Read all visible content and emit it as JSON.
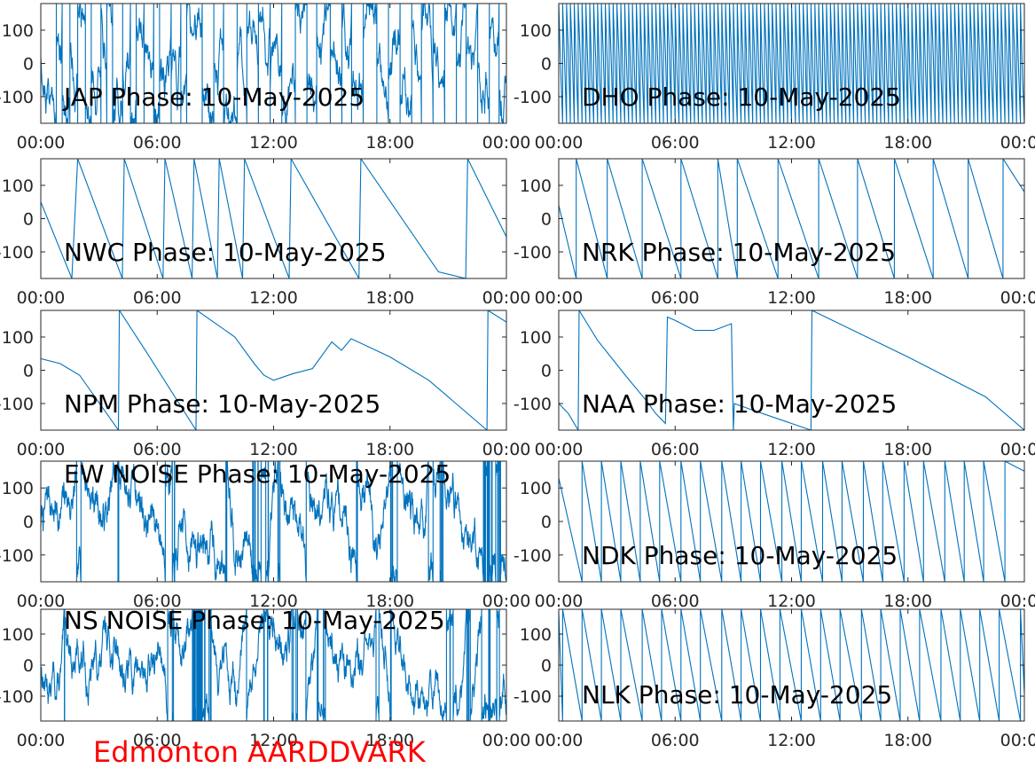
{
  "figure": {
    "footer_label": "Edmonton AARDDVARK",
    "footer_color": "#ff0000",
    "line_color": "#0072bd",
    "axis_color": "#262626"
  },
  "chart_data": [
    {
      "type": "line",
      "title": "JAP Phase: 10-May-2025",
      "x_ticks": [
        "00:00",
        "06:00",
        "12:00",
        "18:00",
        "00:00"
      ],
      "y_ticks": [
        "100",
        "0",
        "-100"
      ],
      "y_tick_values": [
        100,
        0,
        -100
      ],
      "ylim": [
        -180,
        180
      ],
      "xlim_hours": [
        0,
        24
      ],
      "grid": false,
      "series": [
        {
          "mode": "noisy",
          "wraps": [
            0.8,
            1.1,
            1.5,
            1.9,
            2.3,
            2.6,
            3.1,
            3.4,
            3.7,
            4.2,
            4.6,
            4.9,
            5.3,
            5.8,
            6.1,
            6.7,
            7.2,
            7.5,
            8.3,
            8.9,
            9.4,
            10.1,
            10.6,
            11.2,
            11.8,
            12.4,
            13.1,
            13.7,
            14.2,
            14.9,
            15.5,
            16.0,
            16.6,
            17.3,
            17.9,
            18.5,
            19.1,
            19.6,
            20.2,
            20.8,
            21.4,
            21.9,
            22.5,
            23.1,
            23.6
          ]
        }
      ]
    },
    {
      "type": "line",
      "title": "DHO Phase: 10-May-2025",
      "x_ticks": [
        "00:00",
        "06:00",
        "12:00",
        "18:00",
        "00:00"
      ],
      "y_ticks": [
        "100",
        "0",
        "-100"
      ],
      "y_tick_values": [
        100,
        0,
        -100
      ],
      "ylim": [
        -180,
        180
      ],
      "xlim_hours": [
        0,
        24
      ],
      "grid": false,
      "series": [
        {
          "mode": "dense",
          "period_hours": 0.2
        }
      ]
    },
    {
      "type": "line",
      "title": "NWC Phase: 10-May-2025",
      "x_ticks": [
        "00:00",
        "06:00",
        "12:00",
        "18:00",
        "00:00"
      ],
      "y_ticks": [
        "100",
        "0",
        "-100"
      ],
      "y_tick_values": [
        100,
        0,
        -100
      ],
      "ylim": [
        -180,
        180
      ],
      "xlim_hours": [
        0,
        24
      ],
      "grid": false,
      "series": [
        {
          "mode": "points",
          "x": [
            0,
            1.6,
            1.9,
            4.2,
            4.3,
            6.3,
            6.4,
            7.8,
            7.9,
            9.1,
            9.2,
            10.4,
            10.5,
            12.8,
            12.9,
            16.4,
            16.5,
            20.5,
            21.9,
            22.0,
            24
          ],
          "y": [
            50,
            -180,
            180,
            -180,
            180,
            -180,
            180,
            -180,
            180,
            -180,
            180,
            -180,
            180,
            -180,
            180,
            -180,
            180,
            -160,
            -180,
            180,
            -55
          ]
        }
      ]
    },
    {
      "type": "line",
      "title": "NRK Phase: 10-May-2025",
      "x_ticks": [
        "00:00",
        "06:00",
        "12:00",
        "18:00",
        "00:00"
      ],
      "y_ticks": [
        "100",
        "0",
        "-100"
      ],
      "y_tick_values": [
        100,
        0,
        -100
      ],
      "ylim": [
        -180,
        180
      ],
      "xlim_hours": [
        0,
        24
      ],
      "grid": false,
      "series": [
        {
          "mode": "sawtooth",
          "start": 40,
          "wraps": [
            0.9,
            2.5,
            4.3,
            6.3,
            8.2,
            9.2,
            11.3,
            13.4,
            15.4,
            17.3,
            19.3,
            21.1,
            22.9
          ],
          "end": 80
        }
      ]
    },
    {
      "type": "line",
      "title": "NPM Phase: 10-May-2025",
      "x_ticks": [
        "00:00",
        "06:00",
        "12:00",
        "18:00",
        "00:00"
      ],
      "y_ticks": [
        "100",
        "0",
        "-100"
      ],
      "y_tick_values": [
        100,
        0,
        -100
      ],
      "ylim": [
        -180,
        180
      ],
      "xlim_hours": [
        0,
        24
      ],
      "grid": false,
      "series": [
        {
          "mode": "points",
          "x": [
            0,
            1.0,
            2.0,
            4.0,
            4.05,
            5.5,
            8.0,
            8.05,
            10.0,
            11.0,
            11.5,
            12.0,
            13.0,
            14.0,
            15.0,
            15.5,
            16.0,
            18.0,
            20.0,
            23.0,
            23.05,
            24
          ],
          "y": [
            35,
            20,
            -15,
            -180,
            180,
            50,
            -180,
            180,
            100,
            20,
            -15,
            -30,
            -10,
            5,
            85,
            60,
            95,
            40,
            -30,
            -180,
            180,
            145
          ]
        }
      ]
    },
    {
      "type": "line",
      "title": "NAA Phase: 10-May-2025",
      "x_ticks": [
        "00:00",
        "06:00",
        "12:00",
        "18:00",
        "00:00"
      ],
      "y_ticks": [
        "100",
        "0",
        "-100"
      ],
      "y_tick_values": [
        100,
        0,
        -100
      ],
      "ylim": [
        -180,
        180
      ],
      "xlim_hours": [
        0,
        24
      ],
      "grid": false,
      "series": [
        {
          "mode": "points",
          "x": [
            0,
            0.5,
            1.0,
            1.05,
            2.0,
            3.5,
            4.5,
            5.0,
            5.5,
            5.6,
            6.0,
            7.0,
            8.0,
            8.9,
            9.0,
            9.05,
            10.0,
            12.0,
            13.0,
            13.05,
            18.0,
            22.0,
            24
          ],
          "y": [
            -100,
            -130,
            -180,
            180,
            90,
            -20,
            -90,
            -130,
            -160,
            160,
            150,
            120,
            120,
            140,
            -180,
            -100,
            -120,
            -160,
            -180,
            180,
            40,
            -80,
            -180
          ]
        }
      ]
    },
    {
      "type": "line",
      "title": "EW NOISE Phase: 10-May-2025",
      "x_ticks": [
        "00:00",
        "06:00",
        "12:00",
        "18:00",
        "00:00"
      ],
      "y_ticks": [
        "100",
        "0",
        "-100"
      ],
      "y_tick_values": [
        100,
        0,
        -100
      ],
      "ylim": [
        -180,
        180
      ],
      "xlim_hours": [
        0,
        24
      ],
      "grid": false,
      "series": [
        {
          "mode": "noise",
          "seed": 7
        }
      ]
    },
    {
      "type": "line",
      "title": "NDK Phase: 10-May-2025",
      "x_ticks": [
        "00:00",
        "06:00",
        "12:00",
        "18:00",
        "00:00"
      ],
      "y_ticks": [
        "100",
        "0",
        "-100"
      ],
      "y_tick_values": [
        100,
        0,
        -100
      ],
      "ylim": [
        -180,
        180
      ],
      "xlim_hours": [
        0,
        24
      ],
      "grid": false,
      "series": [
        {
          "mode": "sawtooth",
          "start": 130,
          "wraps": [
            1.2,
            2.2,
            3.2,
            4.2,
            5.2,
            6.3,
            7.3,
            8.4,
            9.4,
            10.4,
            11.5,
            12.5,
            13.6,
            14.6,
            15.7,
            16.7,
            17.8,
            18.8,
            19.9,
            20.9,
            21.9,
            23.0
          ],
          "end": 150
        }
      ]
    },
    {
      "type": "line",
      "title": "NS NOISE Phase: 10-May-2025",
      "x_ticks": [
        "00:00",
        "06:00",
        "12:00",
        "18:00",
        "00:00"
      ],
      "y_ticks": [
        "100",
        "0",
        "-100"
      ],
      "y_tick_values": [
        100,
        0,
        -100
      ],
      "ylim": [
        -180,
        180
      ],
      "xlim_hours": [
        0,
        24
      ],
      "grid": false,
      "series": [
        {
          "mode": "noise",
          "seed": 13
        }
      ]
    },
    {
      "type": "line",
      "title": "NLK Phase: 10-May-2025",
      "x_ticks": [
        "00:00",
        "06:00",
        "12:00",
        "18:00",
        "00:00"
      ],
      "y_ticks": [
        "100",
        "0",
        "-100"
      ],
      "y_tick_values": [
        100,
        0,
        -100
      ],
      "ylim": [
        -180,
        180
      ],
      "xlim_hours": [
        0,
        24
      ],
      "grid": false,
      "series": [
        {
          "mode": "sawtooth",
          "start": 170,
          "wraps": [
            0.2,
            1.2,
            2.2,
            3.2,
            4.3,
            5.3,
            6.3,
            7.3,
            8.4,
            9.4,
            10.4,
            11.4,
            12.5,
            13.5,
            14.5,
            15.6,
            16.6,
            17.6,
            18.6,
            19.7,
            20.7,
            21.7,
            22.7,
            23.8
          ],
          "end": -90
        }
      ]
    }
  ]
}
